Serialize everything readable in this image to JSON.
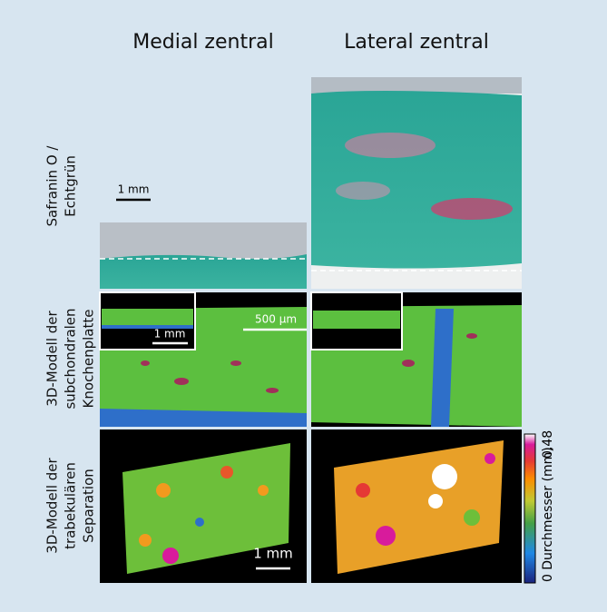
{
  "column_headers": [
    "Medial zentral",
    "Lateral zentral"
  ],
  "rows": [
    {
      "label_lines": [
        "Safranin O /",
        "Echtgrün"
      ]
    },
    {
      "label_lines": [
        "3D-Modell der",
        "subchondralen",
        "Knochenplatte"
      ]
    },
    {
      "label_lines": [
        "3D-Modell der",
        "trabekulären",
        "Separation"
      ]
    }
  ],
  "scale_bars": {
    "histology": "1 mm",
    "model_main": "500 µm",
    "model_inset": "1 mm",
    "separation": "1 mm"
  },
  "colorbar": {
    "title": "Durchmesser (mm)",
    "max_label": "0,48",
    "min_label": "0"
  }
}
